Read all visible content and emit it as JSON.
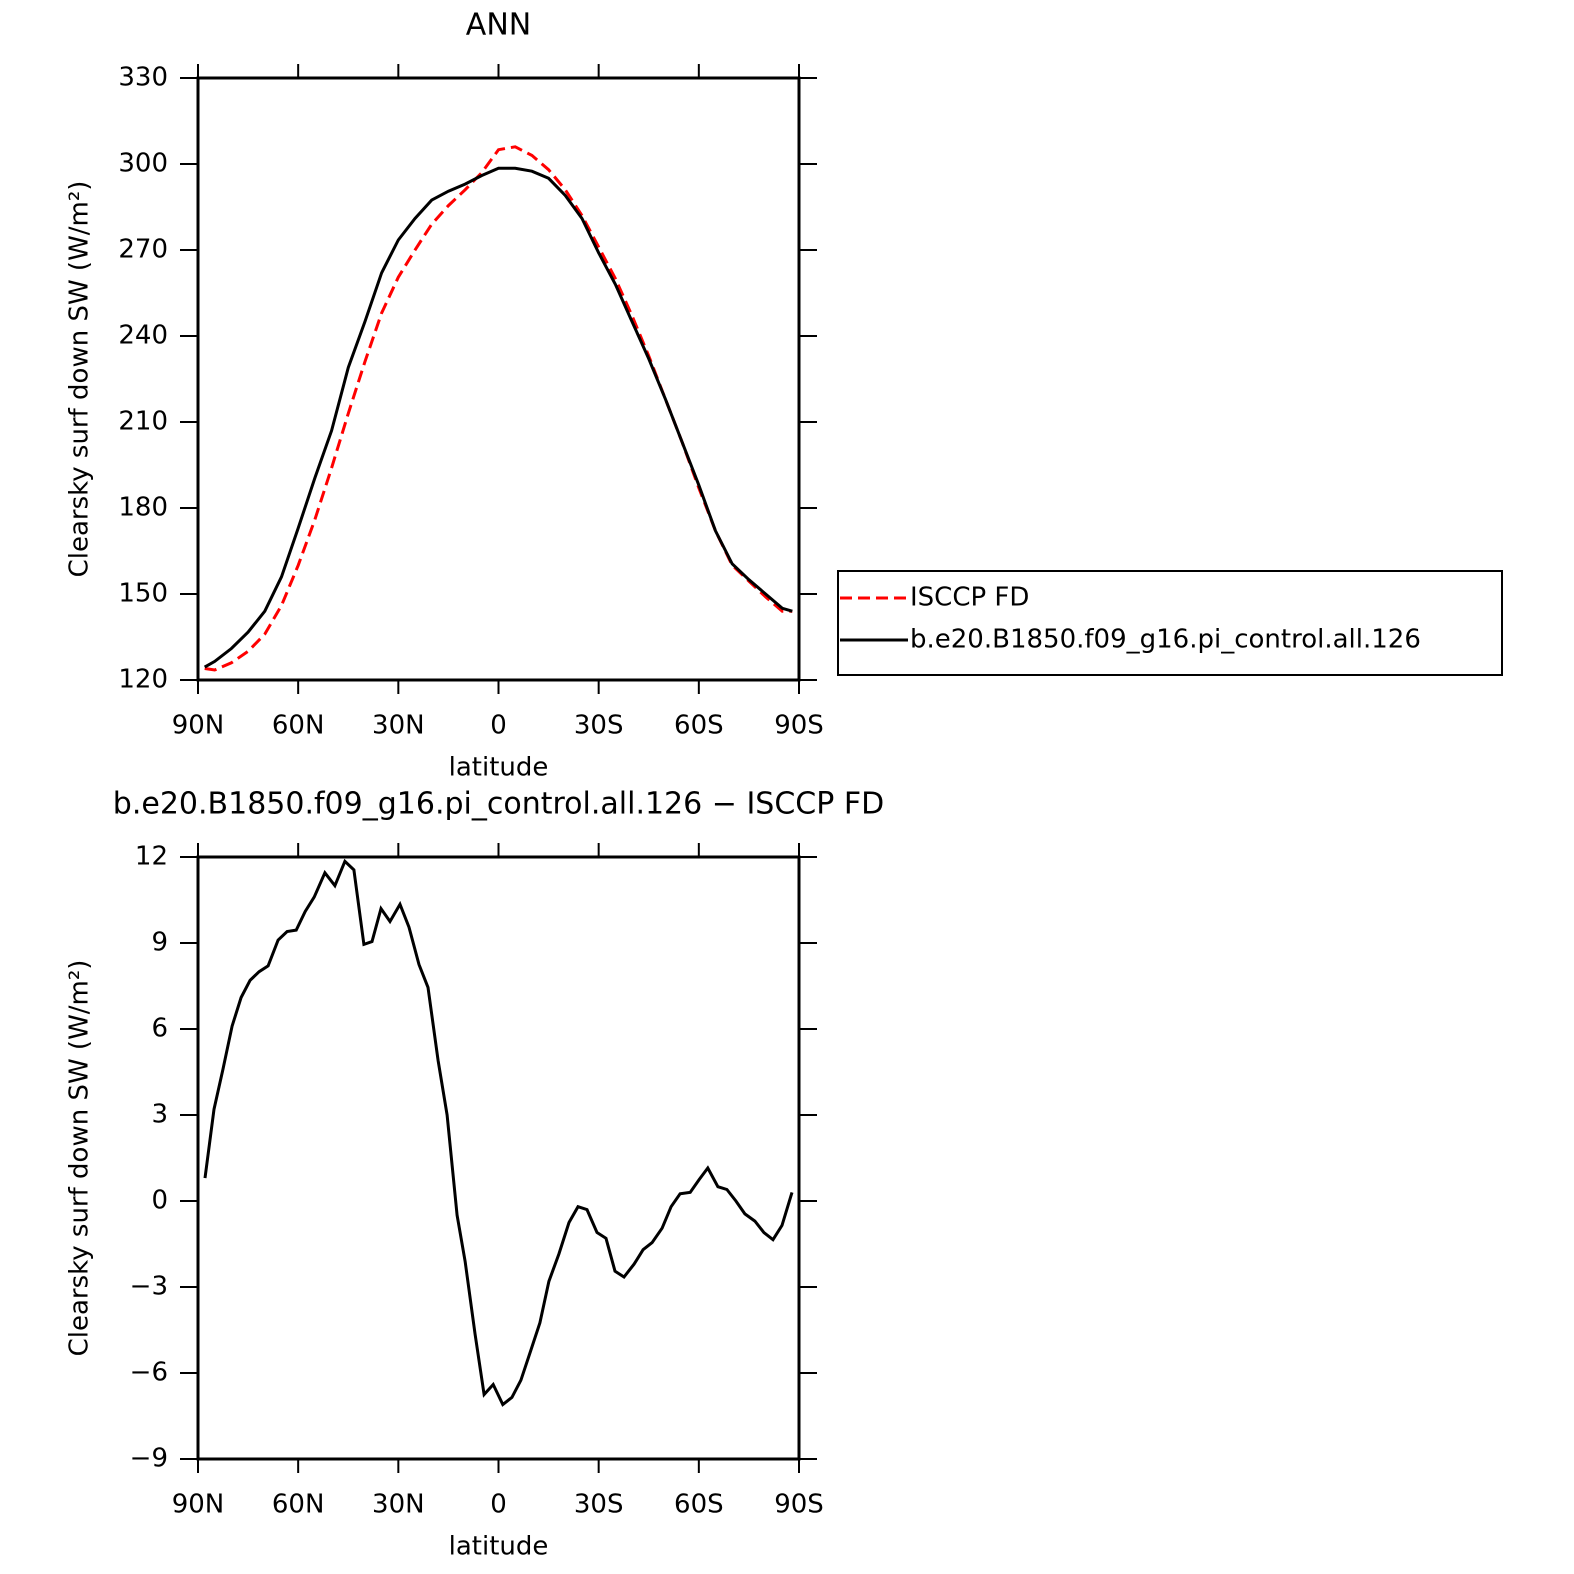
{
  "chart_data": [
    {
      "type": "line",
      "title": "ANN",
      "xlabel": "latitude",
      "ylabel": "Clearsky surf down SW (W/m²)",
      "x": [
        88,
        85,
        80,
        75,
        70,
        65,
        60,
        55,
        50,
        45,
        40,
        35,
        30,
        25,
        20,
        15,
        10,
        5,
        0,
        -5,
        -10,
        -15,
        -20,
        -25,
        -30,
        -35,
        -40,
        -45,
        -50,
        -55,
        -60,
        -65,
        -70,
        -75,
        -80,
        -85,
        -88
      ],
      "series": [
        {
          "name": "ISCCP FD",
          "color": "#ff0000",
          "style": "dashed",
          "values": [
            124,
            123.5,
            126,
            130,
            136,
            146,
            160,
            176,
            194,
            213,
            231,
            248,
            260.5,
            270,
            279,
            285.5,
            291,
            297,
            305,
            306,
            303,
            298,
            291,
            282,
            271,
            260,
            247,
            233,
            218,
            203,
            187,
            172,
            160,
            154.5,
            149,
            144,
            144
          ]
        },
        {
          "name": "b.e20.B1850.f09_g16.pi_control.all.126",
          "color": "#000000",
          "style": "solid",
          "values": [
            124.5,
            126.5,
            131,
            136.7,
            144,
            156,
            173,
            190.5,
            207,
            229,
            245,
            262,
            273.5,
            281,
            287.4,
            290.5,
            293,
            296,
            298.5,
            298.5,
            297.5,
            295,
            289,
            281,
            269,
            258,
            245,
            232,
            218,
            203,
            188,
            172,
            160.5,
            155,
            150,
            145,
            144
          ]
        }
      ],
      "xlim": [
        90,
        -90
      ],
      "xticks": [
        {
          "value": 90,
          "label": "90N"
        },
        {
          "value": 60,
          "label": "60N"
        },
        {
          "value": 30,
          "label": "30N"
        },
        0,
        {
          "value": -30,
          "label": "30S"
        },
        {
          "value": -60,
          "label": "60S"
        },
        {
          "value": -90,
          "label": "90S"
        }
      ],
      "ylim": [
        120,
        330
      ],
      "yticks": [
        120,
        150,
        180,
        210,
        240,
        270,
        300,
        330
      ],
      "legend": "right"
    },
    {
      "type": "line",
      "title": "b.e20.B1850.f09_g16.pi_control.all.126 − ISCCP FD",
      "xlabel": "latitude",
      "ylabel": "Clearsky surf down SW (W/m²)",
      "x": [
        87.9,
        85.2,
        82.5,
        79.8,
        77.1,
        74.4,
        71.7,
        69.0,
        66.0,
        63.3,
        60.6,
        57.9,
        55.2,
        52.0,
        49.0,
        46.0,
        43.3,
        40.3,
        37.9,
        35.2,
        32.5,
        29.5,
        26.8,
        23.8,
        21.1,
        18.1,
        15.4,
        12.4,
        10.0,
        7.0,
        4.3,
        1.6,
        -1.3,
        -4.0,
        -6.7,
        -9.7,
        -12.4,
        -15.1,
        -18.1,
        -21.1,
        -23.8,
        -26.5,
        -29.5,
        -32.2,
        -34.9,
        -37.6,
        -40.6,
        -43.3,
        -46.0,
        -49.0,
        -51.7,
        -54.4,
        -57.4,
        -60.1,
        -62.7,
        -65.7,
        -68.4,
        -71.1,
        -73.8,
        -76.8,
        -79.5,
        -82.2,
        -84.9,
        -87.9
      ],
      "series": [
        {
          "color": "#000000",
          "style": "solid",
          "values": [
            0.8,
            3.2,
            4.6,
            6.1,
            7.1,
            7.7,
            8.0,
            8.2,
            9.1,
            9.4,
            9.45,
            10.1,
            10.6,
            11.45,
            11.0,
            11.85,
            11.55,
            8.95,
            9.05,
            10.2,
            9.75,
            10.35,
            9.55,
            8.25,
            7.45,
            4.9,
            3.0,
            -0.5,
            -2.1,
            -4.65,
            -6.75,
            -6.4,
            -7.1,
            -6.85,
            -6.25,
            -5.2,
            -4.25,
            -2.8,
            -1.85,
            -0.75,
            -0.2,
            -0.3,
            -1.1,
            -1.3,
            -2.45,
            -2.65,
            -2.2,
            -1.7,
            -1.45,
            -0.95,
            -0.2,
            0.25,
            0.3,
            0.75,
            1.15,
            0.5,
            0.4,
            0.0,
            -0.45,
            -0.7,
            -1.1,
            -1.35,
            -0.85,
            0.3
          ]
        }
      ],
      "xlim": [
        90,
        -90
      ],
      "xticks": [
        {
          "value": 90,
          "label": "90N"
        },
        {
          "value": 60,
          "label": "60N"
        },
        {
          "value": 30,
          "label": "30N"
        },
        0,
        {
          "value": -30,
          "label": "30S"
        },
        {
          "value": -60,
          "label": "60S"
        },
        {
          "value": -90,
          "label": "90S"
        }
      ],
      "ylim": [
        -9,
        12
      ],
      "yticks": [
        {
          "value": -9,
          "label": "−9"
        },
        {
          "value": -6,
          "label": "−6"
        },
        {
          "value": -3,
          "label": "−3"
        },
        0,
        3,
        6,
        9,
        12
      ]
    }
  ]
}
